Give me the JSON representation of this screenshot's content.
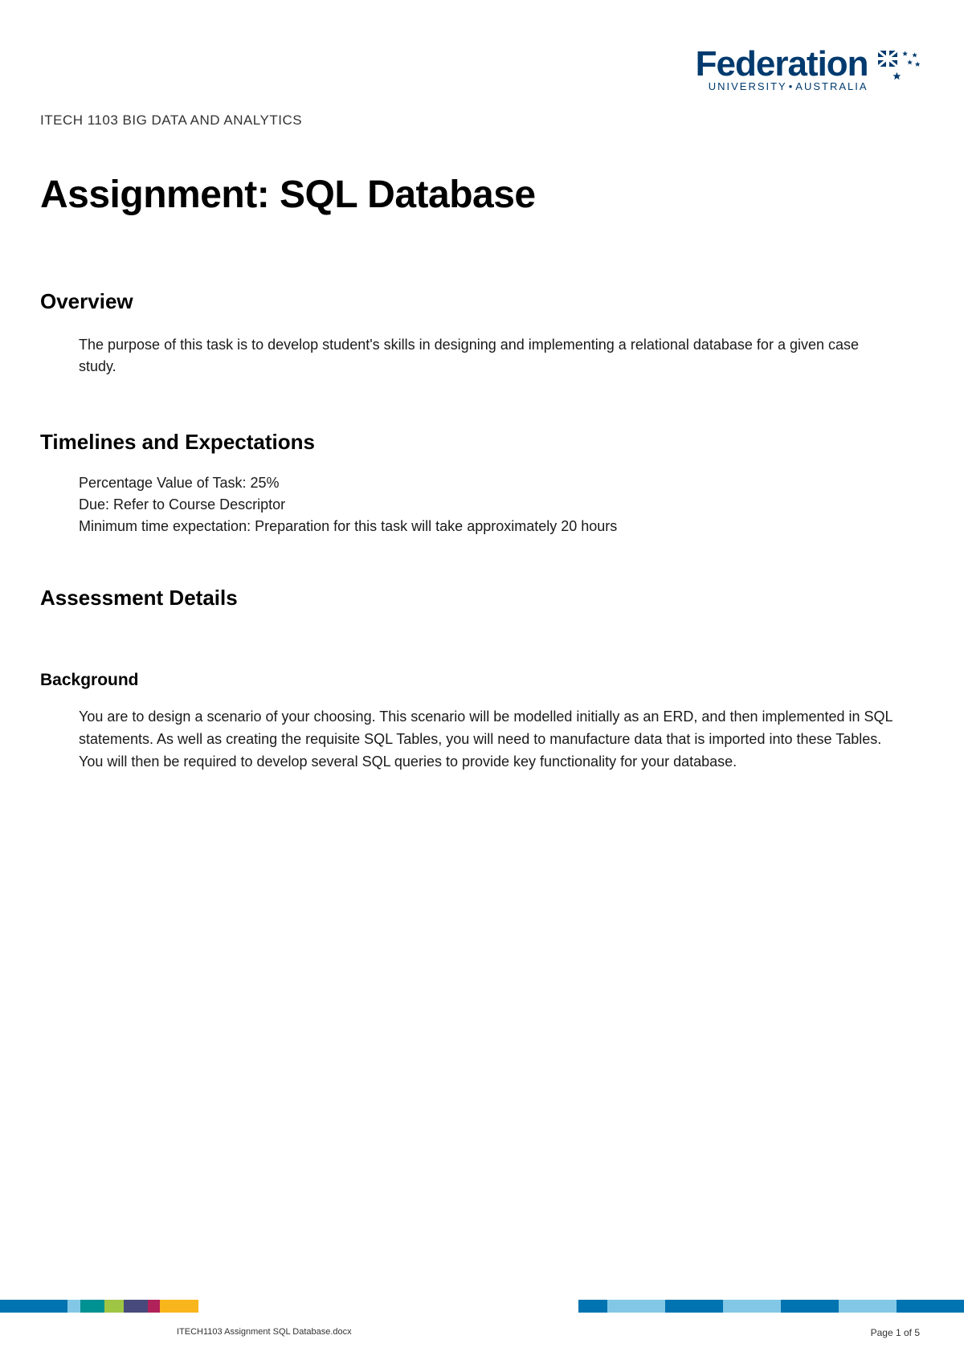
{
  "logo": {
    "main_text": "Federation",
    "tagline_university": "UNIVERSITY",
    "tagline_australia": "AUSTRALIA",
    "flag_colors": {
      "blue": "#003a6e",
      "white": "#ffffff"
    },
    "text_color": "#003a6e"
  },
  "course_code": "ITECH 1103 BIG DATA AND ANALYTICS",
  "title": "Assignment: SQL Database",
  "sections": {
    "overview": {
      "heading": "Overview",
      "body": "The purpose of this task is to develop student's skills in designing and implementing a relational database for a given case study."
    },
    "timelines": {
      "heading": "Timelines and Expectations",
      "items": [
        "Percentage Value of Task: 25%",
        "Due: Refer to Course Descriptor",
        "Minimum time expectation: Preparation for this task will take approximately 20 hours"
      ]
    },
    "assessment": {
      "heading": "Assessment Details"
    },
    "background": {
      "heading": "Background",
      "body": "You are to design a scenario of your choosing. This scenario will be modelled initially as an ERD, and then implemented in SQL statements. As well as creating the requisite SQL Tables, you will need to manufacture data that is imported into these Tables. You will then be required to develop several SQL queries to provide key functionality for your database."
    }
  },
  "footer": {
    "filename": "ITECH1103 Assignment SQL Database.docx",
    "page_label": "Page 1 of 5",
    "color_band": [
      {
        "color": "#0073b0",
        "width": "7%"
      },
      {
        "color": "#82c8e6",
        "width": "1.3%"
      },
      {
        "color": "#009193",
        "width": "2.5%"
      },
      {
        "color": "#9fc545",
        "width": "2%"
      },
      {
        "color": "#484a7b",
        "width": "2.5%"
      },
      {
        "color": "#b1225a",
        "width": "1.3%"
      },
      {
        "color": "#f9b51c",
        "width": "4%"
      },
      {
        "color": "#ffffff",
        "width": "39.4%"
      },
      {
        "color": "#0073b0",
        "width": "3%"
      },
      {
        "color": "#82c8e6",
        "width": "6%"
      },
      {
        "color": "#0073b0",
        "width": "6%"
      },
      {
        "color": "#82c8e6",
        "width": "6%"
      },
      {
        "color": "#0073b0",
        "width": "6%"
      },
      {
        "color": "#82c8e6",
        "width": "6%"
      },
      {
        "color": "#0073b0",
        "width": "7%"
      }
    ]
  }
}
